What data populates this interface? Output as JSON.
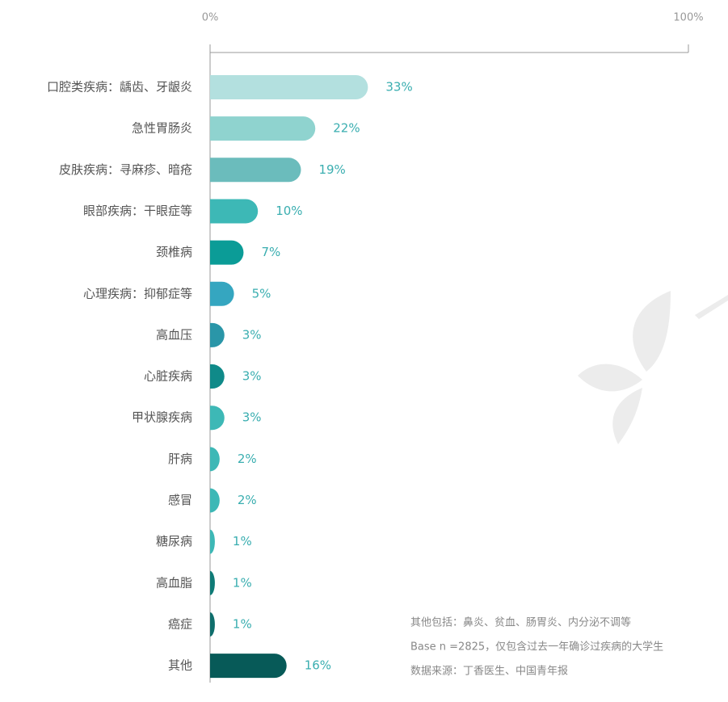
{
  "chart_data": {
    "type": "bar",
    "orientation": "horizontal",
    "categories": [
      "口腔类疾病：龋齿、牙龈炎",
      "急性胃肠炎",
      "皮肤疾病：寻麻疹、暗疮",
      "眼部疾病：干眼症等",
      "颈椎病",
      "心理疾病：抑郁症等",
      "高血压",
      "心脏疾病",
      "甲状腺疾病",
      "肝病",
      "感冒",
      "糖尿病",
      "高血脂",
      "癌症",
      "其他"
    ],
    "values": [
      33,
      22,
      19,
      10,
      7,
      5,
      3,
      3,
      3,
      2,
      2,
      1,
      1,
      1,
      16
    ],
    "value_labels": [
      "33%",
      "22%",
      "19%",
      "10%",
      "7%",
      "5%",
      "3%",
      "3%",
      "3%",
      "2%",
      "2%",
      "1%",
      "1%",
      "1%",
      "16%"
    ],
    "colors": [
      "#b3e0df",
      "#8fd3cf",
      "#6bbcbc",
      "#3db8b6",
      "#0b9c97",
      "#35a6c0",
      "#2a96a8",
      "#0f8a89",
      "#3db8b6",
      "#3db8b6",
      "#3db8b6",
      "#3db8b6",
      "#0f7b77",
      "#0f6e6c",
      "#075a58"
    ],
    "xlim": [
      0,
      100
    ],
    "xticks": [
      {
        "value": 0,
        "label": "0%"
      },
      {
        "value": 100,
        "label": "100%"
      }
    ],
    "notes": [
      "其他包括：鼻炎、贫血、肠胃炎、内分泌不调等",
      "Base n =2825，仅包含过去一年确诊过疾病的大学生",
      "数据来源：丁香医生、中国青年报"
    ]
  }
}
